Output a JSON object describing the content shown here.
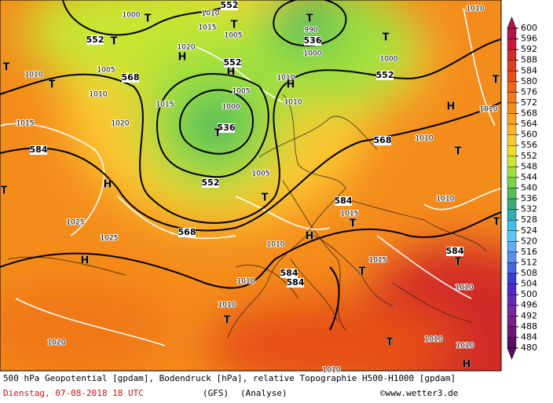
{
  "colorbar": {
    "levels": [
      600,
      596,
      592,
      588,
      584,
      580,
      576,
      572,
      568,
      564,
      560,
      556,
      552,
      548,
      544,
      540,
      536,
      532,
      528,
      524,
      520,
      516,
      512,
      508,
      504,
      500,
      496,
      492,
      488,
      484,
      480
    ],
    "colors": [
      "#b0144a",
      "#c8143c",
      "#d22a28",
      "#dc3c1e",
      "#e65014",
      "#ee6414",
      "#f07818",
      "#f48c1c",
      "#f8a020",
      "#fab428",
      "#fcc830",
      "#f0dc28",
      "#c8e632",
      "#a0e03c",
      "#78d24a",
      "#50be5a",
      "#3caa78",
      "#32aab4",
      "#3cbee6",
      "#5ac8f0",
      "#64aaf0",
      "#5a8cec",
      "#4664e6",
      "#3c3cd2",
      "#5028c8",
      "#6428b4",
      "#7828a0",
      "#7a1e8c",
      "#6e1478",
      "#5a0a64"
    ]
  },
  "caption": {
    "title": "500 hPa Geopotential [gpdam], Bodendruck [hPa], relative Topographie H500-H1000 [gpdam]",
    "date": "Dienstag, 07-08-2018  18 UTC",
    "model": "(GFS)",
    "run": "(Analyse)",
    "credit": "©www.wetter3.de"
  },
  "map_labels": [
    "552",
    "1010",
    "1000",
    "T",
    "552",
    "T",
    "1015",
    "1005",
    "T",
    "T",
    "990",
    "536",
    "1000",
    "T",
    "1000",
    "552",
    "1010",
    "1020",
    "H",
    "1005",
    "568",
    "1010",
    "T",
    "H",
    "552",
    "1010",
    "H",
    "T",
    "1010",
    "1005",
    "1010",
    "1015",
    "1000",
    "536",
    "T",
    "1020",
    "1015",
    "584",
    "568",
    "1010",
    "T",
    "H",
    "1010",
    "T",
    "1005",
    "552",
    "H",
    "T",
    "T",
    "584",
    "1015",
    "T",
    "1010",
    "T",
    "1025",
    "1025",
    "568",
    "H",
    "1010",
    "1015",
    "584",
    "T",
    "H",
    "584",
    "584",
    "T",
    "1010",
    "1010",
    "1010",
    "T",
    "1020",
    "T",
    "1010",
    "1010",
    "H",
    "1010"
  ]
}
